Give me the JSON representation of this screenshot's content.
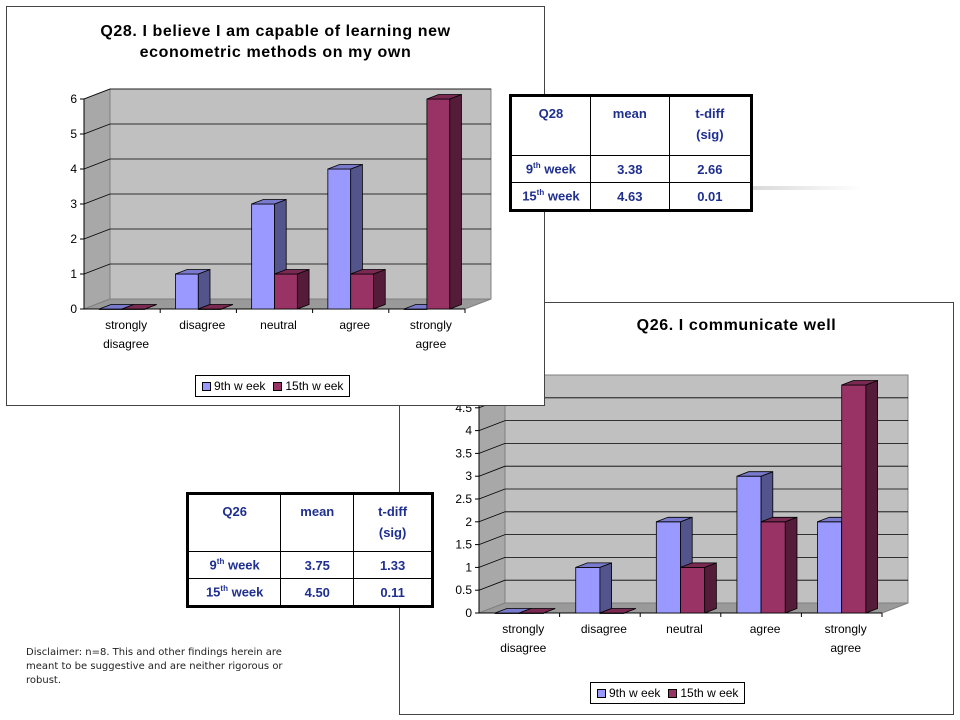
{
  "colors": {
    "week9": "#9999ff",
    "week15": "#993366",
    "plot_bg": "#c0c0c0",
    "table_text": "#1f2f8f"
  },
  "chart_data": [
    {
      "type": "bar",
      "title": "Q28. I believe I am capable of learning new\neconometric methods on my own",
      "categories": [
        "strongly\ndisagree",
        "disagree",
        "neutral",
        "agree",
        "strongly\nagree"
      ],
      "series": [
        {
          "name": "9th w eek",
          "values": [
            0,
            1,
            3,
            4,
            0
          ]
        },
        {
          "name": "15th w eek",
          "values": [
            0,
            0,
            1,
            1,
            6
          ]
        }
      ],
      "ylim": [
        0,
        6
      ],
      "yticks": [
        "0",
        "1",
        "2",
        "3",
        "4",
        "5",
        "6"
      ],
      "grid": true,
      "legend": "bottom"
    },
    {
      "type": "bar",
      "title": "Q26. I communicate well",
      "categories": [
        "strongly\ndisagree",
        "disagree",
        "neutral",
        "agree",
        "strongly\nagree"
      ],
      "series": [
        {
          "name": "9th w eek",
          "values": [
            0,
            1,
            2,
            3,
            2
          ]
        },
        {
          "name": "15th w eek",
          "values": [
            0,
            0,
            1,
            2,
            5
          ]
        }
      ],
      "ylim": [
        0,
        5
      ],
      "yticks": [
        "0",
        "0.5",
        "1",
        "1.5",
        "2",
        "2.5",
        "3",
        "3.5",
        "4",
        "4.5"
      ],
      "grid": true,
      "legend": "bottom"
    }
  ],
  "tables": {
    "q28": {
      "header": [
        "Q28",
        "mean",
        "t-diff\n(sig)"
      ],
      "rows": [
        {
          "label_num": "9",
          "label_sup": "th",
          "label_rest": " week",
          "mean": "3.38",
          "tdiff": "2.66"
        },
        {
          "label_num": "15",
          "label_sup": "th",
          "label_rest": " week",
          "mean": "4.63",
          "tdiff": "0.01"
        }
      ]
    },
    "q26": {
      "header": [
        "Q26",
        "mean",
        "t-diff\n(sig)"
      ],
      "rows": [
        {
          "label_num": "9",
          "label_sup": "th",
          "label_rest": " week",
          "mean": "3.75",
          "tdiff": "1.33"
        },
        {
          "label_num": "15",
          "label_sup": "th",
          "label_rest": " week",
          "mean": "4.50",
          "tdiff": "0.11"
        }
      ]
    }
  },
  "disclaimer": "Disclaimer:  n=8.  This and other findings herein are meant to be suggestive and are neither rigorous or robust."
}
